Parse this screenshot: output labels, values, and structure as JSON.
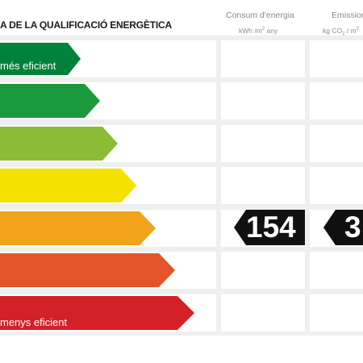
{
  "header": {
    "title": "A DE LA QUALIFICACIÓ ENERGÈTICA",
    "consumption_heading": "Consum d'energia",
    "consumption_unit_pre": "kWh /m",
    "consumption_unit_sup": "2",
    "consumption_unit_post": " any",
    "emissions_heading": "Emissions",
    "emissions_unit_pre": "kg CO",
    "emissions_unit_sub": "2",
    "emissions_unit_post": " / m",
    "emissions_unit_sup": "2"
  },
  "scale": {
    "top_label": "més eficient",
    "bottom_label": "menys eficient",
    "bar_colors": [
      "#00823b",
      "#1a9a3c",
      "#8cbc35",
      "#f5e100",
      "#f2a21b",
      "#e4542a",
      "#d42128"
    ]
  },
  "rating": {
    "consumption_value": "154",
    "emissions_value_visible": "3",
    "level_index": 4,
    "badge_color": "#111111"
  }
}
